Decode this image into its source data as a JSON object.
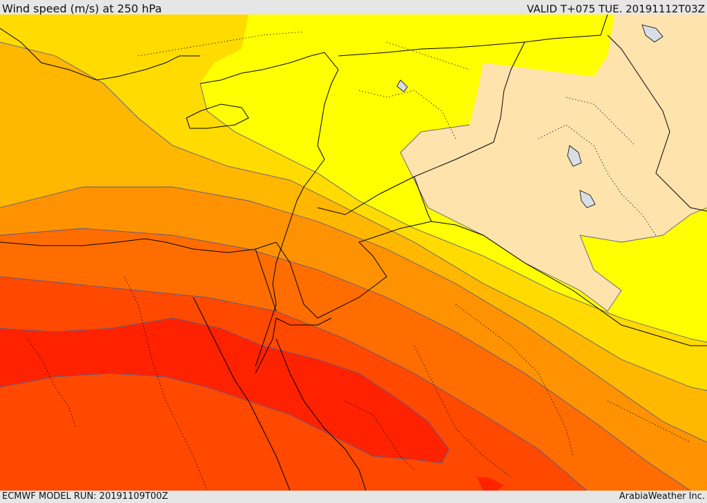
{
  "header": {
    "title": "Wind speed (m/s) at 250 hPa",
    "valid_time": "VALID T+075 TUE. 20191112T03Z"
  },
  "footer": {
    "model_run": "ECMWF MODEL RUN: 20191109T00Z",
    "credit": "ArabiaWeather Inc."
  },
  "map": {
    "field": "wind speed at 250 hPa",
    "colors": {
      "band_1": "#ffe3ad",
      "band_2": "#ffff00",
      "band_3": "#ffdb00",
      "band_4": "#ffb700",
      "band_5": "#ff9200",
      "band_6": "#ff6d00",
      "band_7": "#ff4800",
      "band_8": "#ff2200",
      "contour_line": "#5a5a8c",
      "border_line": "#000000",
      "lake_fill": "#d9dde6"
    }
  }
}
